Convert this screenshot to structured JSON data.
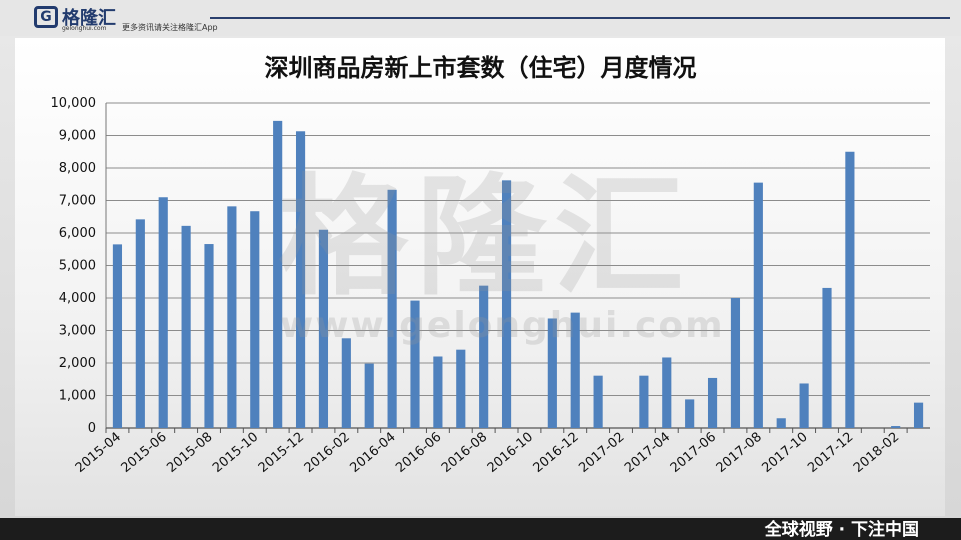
{
  "brand": {
    "logo_glyph": "G",
    "logo_text": "格隆汇",
    "logo_url": "gelonghui.com",
    "slogan": "更多资讯请关注格隆汇App"
  },
  "watermark": {
    "cn": "格隆汇",
    "en": "www.gelonghui.com"
  },
  "footer": {
    "text": "全球视野 · 下注中国"
  },
  "colors": {
    "bar": "#4f81bd",
    "grid": "#8c8c8c",
    "footer": "#1c1c1c",
    "brand": "#223b6e"
  },
  "chart_data": {
    "type": "bar",
    "title": "深圳商品房新上市套数（住宅）月度情况",
    "xlabel": "",
    "ylabel": "",
    "ylim": [
      0,
      10000
    ],
    "yticks": [
      "0",
      "1,000",
      "2,000",
      "3,000",
      "4,000",
      "5,000",
      "6,000",
      "7,000",
      "8,000",
      "9,000",
      "10,000"
    ],
    "grid": true,
    "legend": "none",
    "categories": [
      "2015-04",
      "2015-05",
      "2015-06",
      "2015-07",
      "2015-08",
      "2015-09",
      "2015-10",
      "2015-11",
      "2015-12",
      "2016-01",
      "2016-02",
      "2016-03",
      "2016-04",
      "2016-05",
      "2016-06",
      "2016-07",
      "2016-08",
      "2016-09",
      "2016-10",
      "2016-11",
      "2016-12",
      "2017-01",
      "2017-02",
      "2017-03",
      "2017-04",
      "2017-05",
      "2017-06",
      "2017-07",
      "2017-08",
      "2017-09",
      "2017-10",
      "2017-11",
      "2017-12",
      "2018-01",
      "2018-02",
      "2018-03"
    ],
    "tick_labels": [
      "2015-04",
      "2015-06",
      "2015-08",
      "2015-10",
      "2015-12",
      "2016-02",
      "2016-04",
      "2016-06",
      "2016-08",
      "2016-10",
      "2016-12",
      "2017-02",
      "2017-04",
      "2017-06",
      "2017-08",
      "2017-10",
      "2017-12",
      "2018-02"
    ],
    "values": [
      5650,
      6420,
      7100,
      6220,
      5660,
      6820,
      6670,
      9450,
      9130,
      6100,
      2760,
      1980,
      7330,
      3920,
      2200,
      2410,
      4380,
      7620,
      0,
      3370,
      3550,
      1610,
      0,
      1610,
      2170,
      880,
      1540,
      4000,
      7550,
      300,
      1370,
      4310,
      8500,
      0,
      60,
      780
    ]
  }
}
